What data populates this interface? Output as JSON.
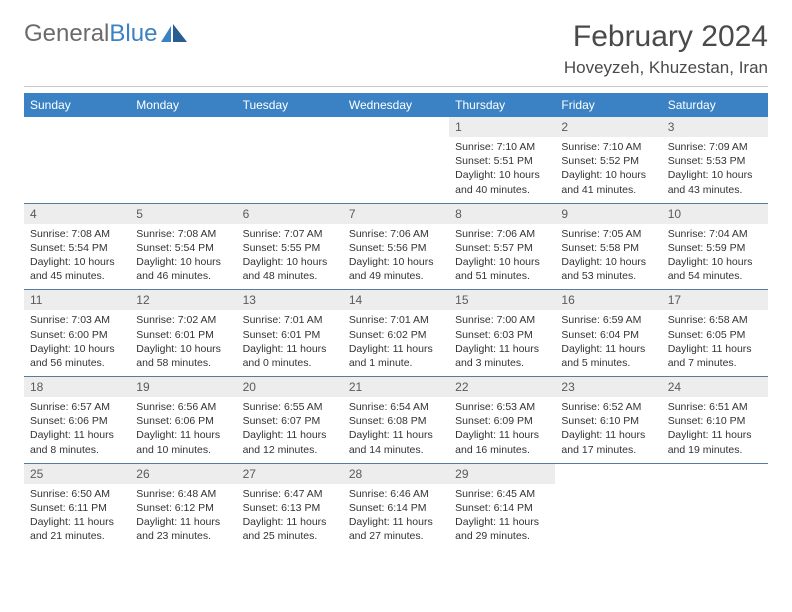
{
  "logo": {
    "text1": "General",
    "text2": "Blue"
  },
  "title": "February 2024",
  "location": "Hoveyzeh, Khuzestan, Iran",
  "colors": {
    "header_bg": "#3b82c4",
    "header_text": "#ffffff",
    "daynum_bg": "#ededed",
    "daynum_text": "#5a5a5a",
    "body_text": "#333333",
    "rule": "#5a7a9a",
    "page_bg": "#ffffff",
    "logo_gray": "#6b6b6b",
    "logo_blue": "#3b82c4",
    "title_color": "#4a4a4a"
  },
  "typography": {
    "month_fontsize": 30,
    "location_fontsize": 17,
    "dow_fontsize": 12,
    "daynum_fontsize": 12,
    "body_fontsize": 10.5
  },
  "days_of_week": [
    "Sunday",
    "Monday",
    "Tuesday",
    "Wednesday",
    "Thursday",
    "Friday",
    "Saturday"
  ],
  "weeks": [
    [
      null,
      null,
      null,
      null,
      {
        "n": "1",
        "sunrise": "7:10 AM",
        "sunset": "5:51 PM",
        "daylight": "10 hours and 40 minutes."
      },
      {
        "n": "2",
        "sunrise": "7:10 AM",
        "sunset": "5:52 PM",
        "daylight": "10 hours and 41 minutes."
      },
      {
        "n": "3",
        "sunrise": "7:09 AM",
        "sunset": "5:53 PM",
        "daylight": "10 hours and 43 minutes."
      }
    ],
    [
      {
        "n": "4",
        "sunrise": "7:08 AM",
        "sunset": "5:54 PM",
        "daylight": "10 hours and 45 minutes."
      },
      {
        "n": "5",
        "sunrise": "7:08 AM",
        "sunset": "5:54 PM",
        "daylight": "10 hours and 46 minutes."
      },
      {
        "n": "6",
        "sunrise": "7:07 AM",
        "sunset": "5:55 PM",
        "daylight": "10 hours and 48 minutes."
      },
      {
        "n": "7",
        "sunrise": "7:06 AM",
        "sunset": "5:56 PM",
        "daylight": "10 hours and 49 minutes."
      },
      {
        "n": "8",
        "sunrise": "7:06 AM",
        "sunset": "5:57 PM",
        "daylight": "10 hours and 51 minutes."
      },
      {
        "n": "9",
        "sunrise": "7:05 AM",
        "sunset": "5:58 PM",
        "daylight": "10 hours and 53 minutes."
      },
      {
        "n": "10",
        "sunrise": "7:04 AM",
        "sunset": "5:59 PM",
        "daylight": "10 hours and 54 minutes."
      }
    ],
    [
      {
        "n": "11",
        "sunrise": "7:03 AM",
        "sunset": "6:00 PM",
        "daylight": "10 hours and 56 minutes."
      },
      {
        "n": "12",
        "sunrise": "7:02 AM",
        "sunset": "6:01 PM",
        "daylight": "10 hours and 58 minutes."
      },
      {
        "n": "13",
        "sunrise": "7:01 AM",
        "sunset": "6:01 PM",
        "daylight": "11 hours and 0 minutes."
      },
      {
        "n": "14",
        "sunrise": "7:01 AM",
        "sunset": "6:02 PM",
        "daylight": "11 hours and 1 minute."
      },
      {
        "n": "15",
        "sunrise": "7:00 AM",
        "sunset": "6:03 PM",
        "daylight": "11 hours and 3 minutes."
      },
      {
        "n": "16",
        "sunrise": "6:59 AM",
        "sunset": "6:04 PM",
        "daylight": "11 hours and 5 minutes."
      },
      {
        "n": "17",
        "sunrise": "6:58 AM",
        "sunset": "6:05 PM",
        "daylight": "11 hours and 7 minutes."
      }
    ],
    [
      {
        "n": "18",
        "sunrise": "6:57 AM",
        "sunset": "6:06 PM",
        "daylight": "11 hours and 8 minutes."
      },
      {
        "n": "19",
        "sunrise": "6:56 AM",
        "sunset": "6:06 PM",
        "daylight": "11 hours and 10 minutes."
      },
      {
        "n": "20",
        "sunrise": "6:55 AM",
        "sunset": "6:07 PM",
        "daylight": "11 hours and 12 minutes."
      },
      {
        "n": "21",
        "sunrise": "6:54 AM",
        "sunset": "6:08 PM",
        "daylight": "11 hours and 14 minutes."
      },
      {
        "n": "22",
        "sunrise": "6:53 AM",
        "sunset": "6:09 PM",
        "daylight": "11 hours and 16 minutes."
      },
      {
        "n": "23",
        "sunrise": "6:52 AM",
        "sunset": "6:10 PM",
        "daylight": "11 hours and 17 minutes."
      },
      {
        "n": "24",
        "sunrise": "6:51 AM",
        "sunset": "6:10 PM",
        "daylight": "11 hours and 19 minutes."
      }
    ],
    [
      {
        "n": "25",
        "sunrise": "6:50 AM",
        "sunset": "6:11 PM",
        "daylight": "11 hours and 21 minutes."
      },
      {
        "n": "26",
        "sunrise": "6:48 AM",
        "sunset": "6:12 PM",
        "daylight": "11 hours and 23 minutes."
      },
      {
        "n": "27",
        "sunrise": "6:47 AM",
        "sunset": "6:13 PM",
        "daylight": "11 hours and 25 minutes."
      },
      {
        "n": "28",
        "sunrise": "6:46 AM",
        "sunset": "6:14 PM",
        "daylight": "11 hours and 27 minutes."
      },
      {
        "n": "29",
        "sunrise": "6:45 AM",
        "sunset": "6:14 PM",
        "daylight": "11 hours and 29 minutes."
      },
      null,
      null
    ]
  ],
  "labels": {
    "sunrise_prefix": "Sunrise: ",
    "sunset_prefix": "Sunset: ",
    "daylight_prefix": "Daylight: "
  }
}
